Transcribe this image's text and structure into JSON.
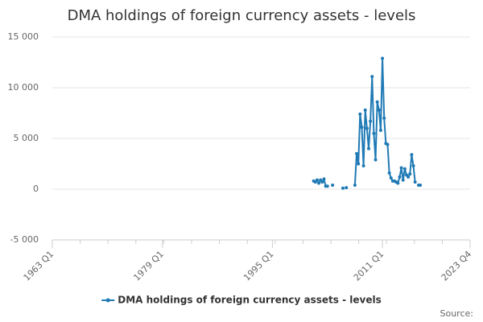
{
  "chart_data": {
    "type": "line",
    "title": "DMA holdings of foreign currency assets - levels",
    "x": [
      "2001 Q1",
      "2001 Q2",
      "2001 Q3",
      "2001 Q4",
      "2002 Q1",
      "2002 Q2",
      "2002 Q3",
      "2002 Q4",
      "2003 Q1",
      "2003 Q2",
      "2003 Q3",
      "2003 Q4",
      "2004 Q1",
      "2004 Q2",
      "2004 Q3",
      "2004 Q4",
      "2005 Q1",
      "2005 Q2",
      "2005 Q3",
      "2005 Q4",
      "2006 Q1",
      "2006 Q2",
      "2006 Q3",
      "2006 Q4",
      "2007 Q1",
      "2007 Q2",
      "2007 Q3",
      "2007 Q4",
      "2008 Q1",
      "2008 Q2",
      "2008 Q3",
      "2008 Q4",
      "2009 Q1",
      "2009 Q2",
      "2009 Q3",
      "2009 Q4",
      "2010 Q1",
      "2010 Q2",
      "2010 Q3",
      "2010 Q4",
      "2011 Q1",
      "2011 Q2",
      "2011 Q3",
      "2011 Q4",
      "2012 Q1",
      "2012 Q2",
      "2012 Q3",
      "2012 Q4",
      "2013 Q1",
      "2013 Q2",
      "2013 Q3",
      "2013 Q4",
      "2014 Q1",
      "2014 Q2",
      "2014 Q3",
      "2014 Q4",
      "2015 Q1",
      "2015 Q2",
      "2015 Q3",
      "2015 Q4",
      "2016 Q1",
      "2016 Q2",
      "2016 Q3"
    ],
    "series": [
      {
        "name": "DMA holdings of foreign currency assets - levels",
        "color": "#1f7ab5",
        "values": [
          800,
          700,
          900,
          600,
          900,
          700,
          1000,
          300,
          300,
          null,
          null,
          400,
          null,
          null,
          null,
          null,
          null,
          100,
          null,
          150,
          null,
          null,
          null,
          null,
          400,
          3500,
          2500,
          7400,
          6100,
          2300,
          7800,
          6000,
          4000,
          6700,
          11100,
          5500,
          2900,
          8600,
          7800,
          5800,
          12900,
          7000,
          4500,
          4400,
          1600,
          1100,
          800,
          800,
          700,
          600,
          1200,
          2100,
          900,
          2000,
          1400,
          1200,
          1500,
          3400,
          2300,
          700,
          null,
          400,
          400
        ]
      }
    ],
    "xlim": [
      "1963 Q1",
      "2023 Q4"
    ],
    "xticks": [
      "1963 Q1",
      "1979 Q1",
      "1995 Q1",
      "2011 Q1",
      "2023 Q4"
    ],
    "ylim": [
      -5000,
      15000
    ],
    "yticks": [
      {
        "value": -5000,
        "label": "-5 000"
      },
      0,
      {
        "value": 5000,
        "label": "5 000"
      },
      {
        "value": 10000,
        "label": "10 000"
      },
      {
        "value": 15000,
        "label": "15 000"
      }
    ],
    "grid": true,
    "legend": "bottom",
    "source": "Source:"
  }
}
